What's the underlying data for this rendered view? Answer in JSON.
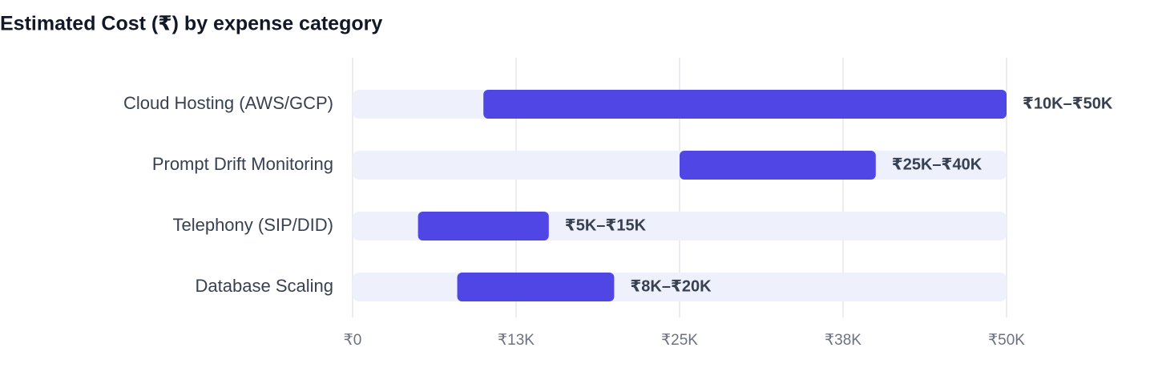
{
  "chart_data": {
    "type": "range_bar",
    "title": "Estimated Cost (₹) by expense category",
    "categories": [
      "Cloud Hosting (AWS/GCP)",
      "Prompt Drift Monitoring",
      "Telephony (SIP/DID)",
      "Database Scaling"
    ],
    "low": [
      10000,
      25000,
      5000,
      8000
    ],
    "high": [
      50000,
      40000,
      15000,
      20000
    ],
    "value_labels": [
      "₹10K–₹50K",
      "₹25K–₹40K",
      "₹5K–₹15K",
      "₹8K–₹20K"
    ],
    "color": "#4f46e5",
    "track_color": "#eef0fc",
    "xlim": [
      0,
      50000
    ],
    "xticks": [
      {
        "value": 0,
        "label": "₹0"
      },
      {
        "value": 12500,
        "label": "₹13K"
      },
      {
        "value": 25000,
        "label": "₹25K"
      },
      {
        "value": 37500,
        "label": "₹38K"
      },
      {
        "value": 50000,
        "label": "₹50K"
      }
    ],
    "grid": true
  }
}
